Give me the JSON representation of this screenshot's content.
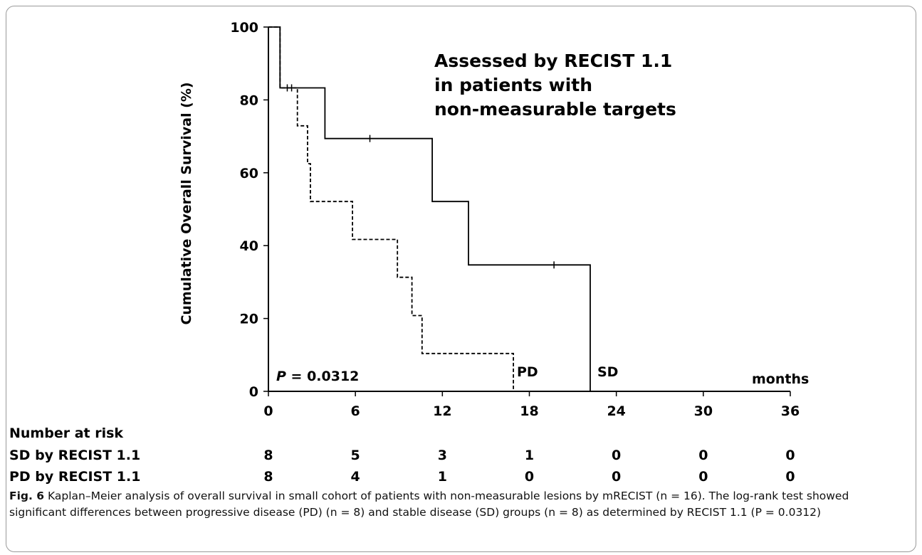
{
  "chart_data": {
    "type": "line",
    "subtype": "kaplan-meier",
    "ylabel": "Cumulative Overall Survival (%)",
    "xunit_label": "months",
    "xticks": [
      0,
      6,
      12,
      18,
      24,
      30,
      36
    ],
    "yticks": [
      0,
      20,
      40,
      60,
      80,
      100
    ],
    "xlim": [
      0,
      36
    ],
    "ylim": [
      0,
      100
    ],
    "grid": false,
    "annotation": [
      "Assessed by RECIST 1.1",
      "in patients with",
      "non-measurable targets"
    ],
    "pvalue_prefix": "P",
    "pvalue_text": " = 0.0312",
    "series": [
      {
        "name": "SD",
        "line_style": "solid",
        "steps": [
          [
            0,
            100
          ],
          [
            0.8,
            100
          ],
          [
            0.8,
            83.3
          ],
          [
            3.9,
            83.3
          ],
          [
            3.9,
            69.4
          ],
          [
            11.3,
            69.4
          ],
          [
            11.3,
            52.1
          ],
          [
            13.8,
            52.1
          ],
          [
            13.8,
            34.7
          ],
          [
            22.2,
            34.7
          ],
          [
            22.2,
            0
          ]
        ],
        "censor_marks": [
          [
            1.6,
            83.3
          ],
          [
            7.0,
            69.4
          ],
          [
            19.7,
            34.7
          ]
        ]
      },
      {
        "name": "PD",
        "line_style": "dashed",
        "steps": [
          [
            0,
            100
          ],
          [
            0.8,
            100
          ],
          [
            0.8,
            83.3
          ],
          [
            2.0,
            83.3
          ],
          [
            2.0,
            72.9
          ],
          [
            2.7,
            72.9
          ],
          [
            2.7,
            62.5
          ],
          [
            2.9,
            62.5
          ],
          [
            2.9,
            52.1
          ],
          [
            5.8,
            52.1
          ],
          [
            5.8,
            41.7
          ],
          [
            8.9,
            41.7
          ],
          [
            8.9,
            31.3
          ],
          [
            9.9,
            31.3
          ],
          [
            9.9,
            20.8
          ],
          [
            10.6,
            20.8
          ],
          [
            10.6,
            10.4
          ],
          [
            16.9,
            10.4
          ],
          [
            16.9,
            0
          ]
        ],
        "censor_marks": [
          [
            1.3,
            83.3
          ]
        ]
      }
    ],
    "number_at_risk": {
      "title": "Number at risk",
      "rows": [
        {
          "label": "SD by RECIST 1.1",
          "values": [
            "8",
            "5",
            "3",
            "1",
            "0",
            "0",
            "0"
          ]
        },
        {
          "label": "PD by RECIST 1.1",
          "values": [
            "8",
            "4",
            "1",
            "0",
            "0",
            "0",
            "0"
          ]
        }
      ]
    }
  },
  "caption": {
    "label": "Fig. 6",
    "text": "  Kaplan–Meier analysis of overall survival in small cohort of patients with non-measurable lesions by mRECIST (n = 16). The log-rank test showed significant differences between progressive disease (PD) (n = 8) and stable disease (SD) groups (n = 8) as determined by RECIST 1.1 (P = 0.0312)"
  }
}
